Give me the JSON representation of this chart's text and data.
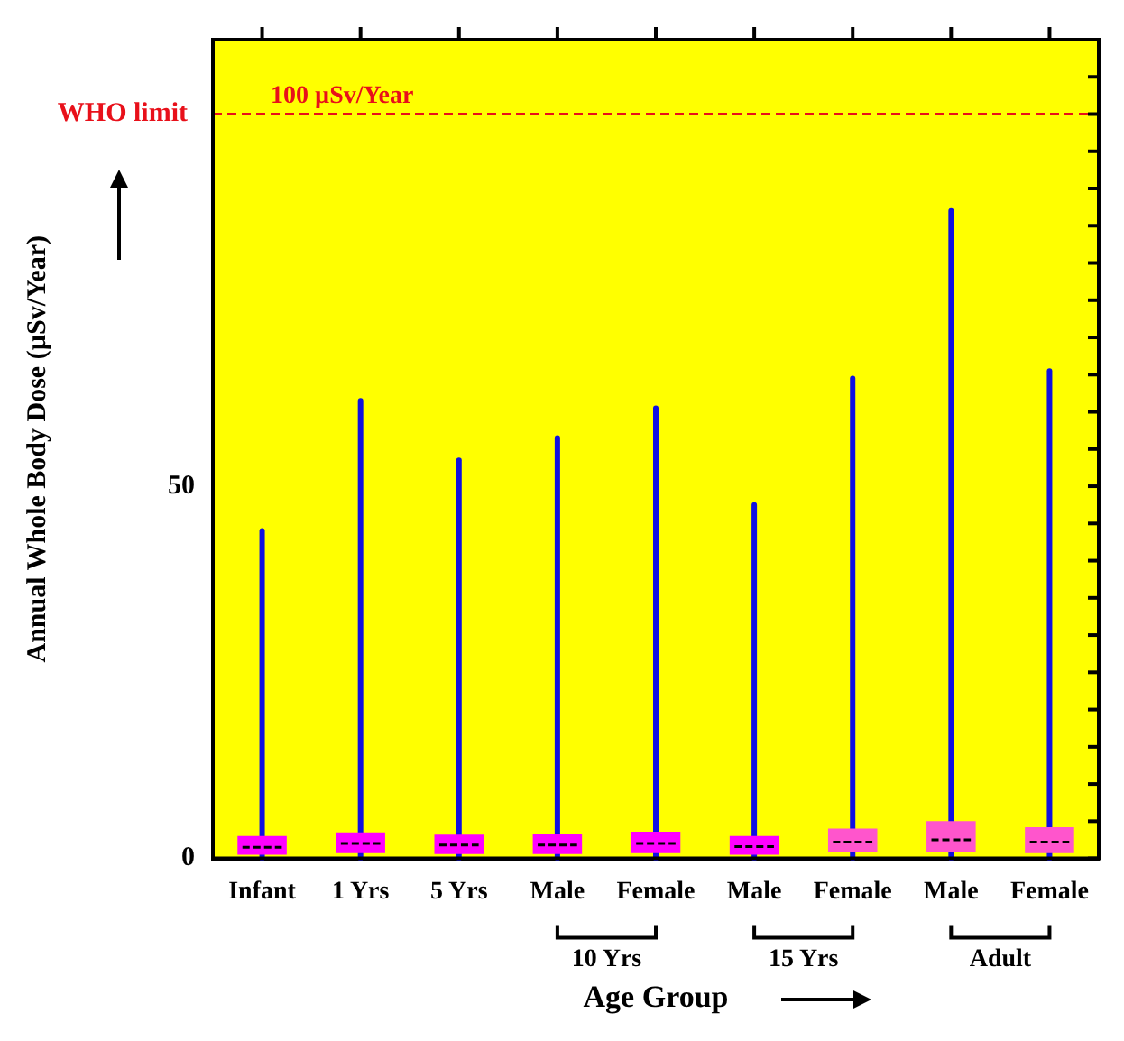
{
  "chart_data": {
    "type": "box",
    "xlabel": "Age Group",
    "ylabel": "Annual Whole Body Dose (µSv/Year)",
    "categories": [
      "Infant",
      "1 Yrs",
      "5 Yrs",
      "Male",
      "Female",
      "Male",
      "Female",
      "Male",
      "Female"
    ],
    "colors": [
      "#ff00ff",
      "#ff00ff",
      "#ff00ff",
      "#ff00ff",
      "#ff00ff",
      "#ff00ff",
      "#ff55cc",
      "#ff55cc",
      "#ff55cc"
    ],
    "boxes": [
      {
        "low": 0,
        "q1": 0.5,
        "median": 1.5,
        "q3": 3,
        "high": 44
      },
      {
        "low": 0,
        "q1": 0.7,
        "median": 2,
        "q3": 3.5,
        "high": 61.5
      },
      {
        "low": 0,
        "q1": 0.6,
        "median": 1.8,
        "q3": 3.2,
        "high": 53.5
      },
      {
        "low": 0,
        "q1": 0.6,
        "median": 1.8,
        "q3": 3.3,
        "high": 56.5
      },
      {
        "low": 0,
        "q1": 0.7,
        "median": 2,
        "q3": 3.6,
        "high": 60.5
      },
      {
        "low": 0,
        "q1": 0.5,
        "median": 1.6,
        "q3": 3,
        "high": 47.5
      },
      {
        "low": 0,
        "q1": 0.8,
        "median": 2.2,
        "q3": 4,
        "high": 64.5
      },
      {
        "low": 0,
        "q1": 0.8,
        "median": 2.5,
        "q3": 5,
        "high": 87
      },
      {
        "low": 0,
        "q1": 0.7,
        "median": 2.2,
        "q3": 4.2,
        "high": 65.5
      }
    ],
    "ylim": [
      0,
      110
    ],
    "yticks": [
      0,
      {
        "value": 5,
        "label": null
      },
      {
        "value": 10,
        "label": null
      },
      {
        "value": 15,
        "label": null
      },
      {
        "value": 20,
        "label": null
      },
      {
        "value": 25,
        "label": null
      },
      {
        "value": 30,
        "label": null
      },
      {
        "value": 35,
        "label": null
      },
      {
        "value": 40,
        "label": null
      },
      {
        "value": 45,
        "label": null
      },
      50,
      {
        "value": 55,
        "label": null
      },
      {
        "value": 60,
        "label": null
      },
      {
        "value": 65,
        "label": null
      },
      {
        "value": 70,
        "label": null
      },
      {
        "value": 75,
        "label": null
      },
      {
        "value": 80,
        "label": null
      },
      {
        "value": 85,
        "label": null
      },
      {
        "value": 90,
        "label": null
      },
      {
        "value": 95,
        "label": null
      },
      {
        "value": 100,
        "label": null
      },
      {
        "value": 105,
        "label": null
      },
      {
        "value": 110,
        "label": null
      }
    ],
    "ref_lines": [
      {
        "axis": "y",
        "value": 100,
        "label": "WHO limit",
        "color": "#e8101a",
        "line_style": "dashed"
      }
    ],
    "annotations": [
      {
        "text": "100 µSv/Year",
        "y": 100
      },
      "10 Yrs",
      "15 Yrs",
      "Adult"
    ],
    "grid": false,
    "legend": false
  }
}
